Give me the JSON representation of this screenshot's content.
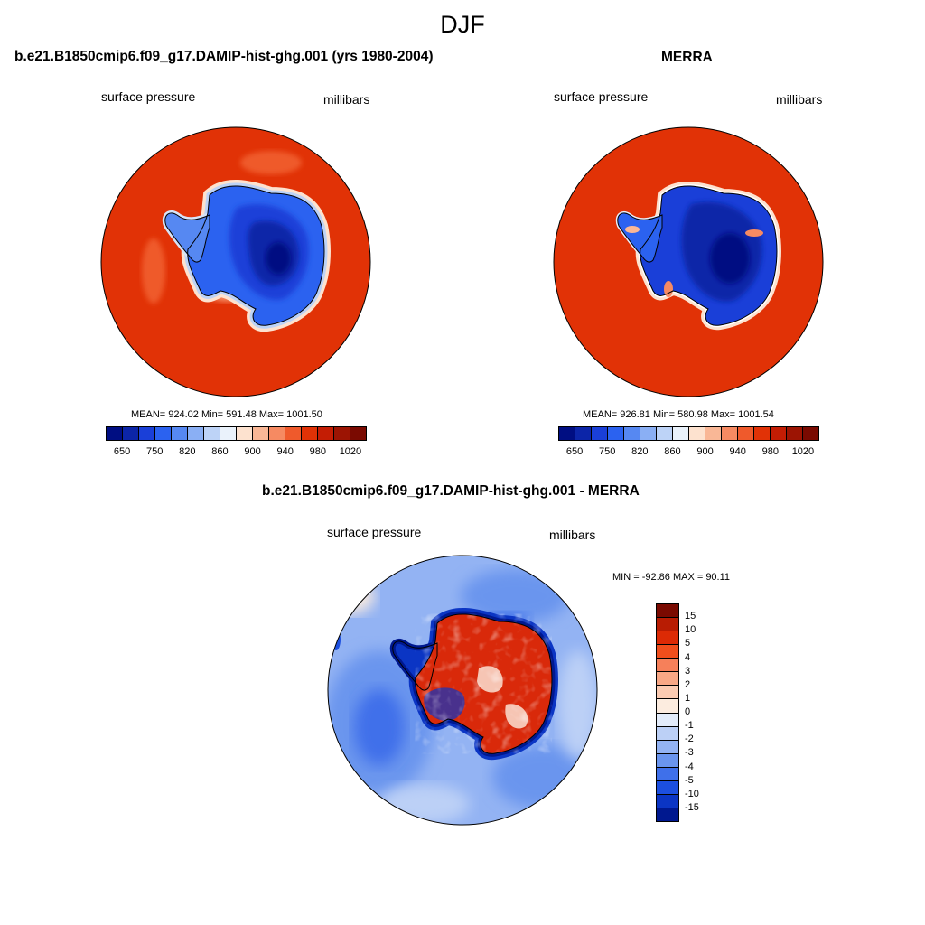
{
  "page_title": "DJF",
  "colors": {
    "ocean_red": "#e13206",
    "ice_blue": "#0a2fd0",
    "deep_blue": "#001a9a",
    "diff_ocean": "#6a95ee",
    "diff_land": "#d9290a"
  },
  "panels": [
    {
      "title": "b.e21.B1850cmip6.f09_g17.DAMIP-hist-ghg.001 (yrs 1980-2004)",
      "variable": "surface pressure",
      "units": "millibars",
      "stats": "MEAN= 924.02  Min= 591.48  Max= 1001.50",
      "colorbar": {
        "labels": [
          "650",
          "750",
          "820",
          "860",
          "900",
          "940",
          "980",
          "1020"
        ],
        "colors": [
          "#000e82",
          "#0c25a8",
          "#1a3fd8",
          "#2b62f0",
          "#5688f2",
          "#8aaff4",
          "#bdd3f7",
          "#eaf2fb",
          "#fde2cf",
          "#f9b796",
          "#f68a62",
          "#ef5a2c",
          "#e13206",
          "#c41d04",
          "#9c1403",
          "#7a0a01"
        ]
      }
    },
    {
      "title": "MERRA",
      "variable": "surface pressure",
      "units": "millibars",
      "stats": "MEAN= 926.81  Min= 580.98  Max= 1001.54",
      "colorbar": {
        "labels": [
          "650",
          "750",
          "820",
          "860",
          "900",
          "940",
          "980",
          "1020"
        ],
        "colors": [
          "#000e82",
          "#0c25a8",
          "#1a3fd8",
          "#2b62f0",
          "#5688f2",
          "#8aaff4",
          "#bdd3f7",
          "#eaf2fb",
          "#fde2cf",
          "#f9b796",
          "#f68a62",
          "#ef5a2c",
          "#e13206",
          "#c41d04",
          "#9c1403",
          "#7a0a01"
        ]
      }
    },
    {
      "title": "b.e21.B1850cmip6.f09_g17.DAMIP-hist-ghg.001 - MERRA",
      "variable": "surface pressure",
      "units": "millibars",
      "stats": "MIN = -92.86 MAX =  90.11",
      "colorbar": {
        "labels": [
          "15",
          "10",
          "5",
          "4",
          "3",
          "2",
          "1",
          "0",
          "-1",
          "-2",
          "-3",
          "-4",
          "-5",
          "-10",
          "-15"
        ],
        "colors": [
          "#7a0a01",
          "#b81c03",
          "#dc2a05",
          "#f04e1c",
          "#f6805a",
          "#f9a886",
          "#fbcbb2",
          "#fcecdf",
          "#e3ecfa",
          "#bcd0f6",
          "#93b3f3",
          "#6a95ee",
          "#3f70ea",
          "#1c4fe0",
          "#0b35c4",
          "#00188f"
        ]
      }
    }
  ]
}
